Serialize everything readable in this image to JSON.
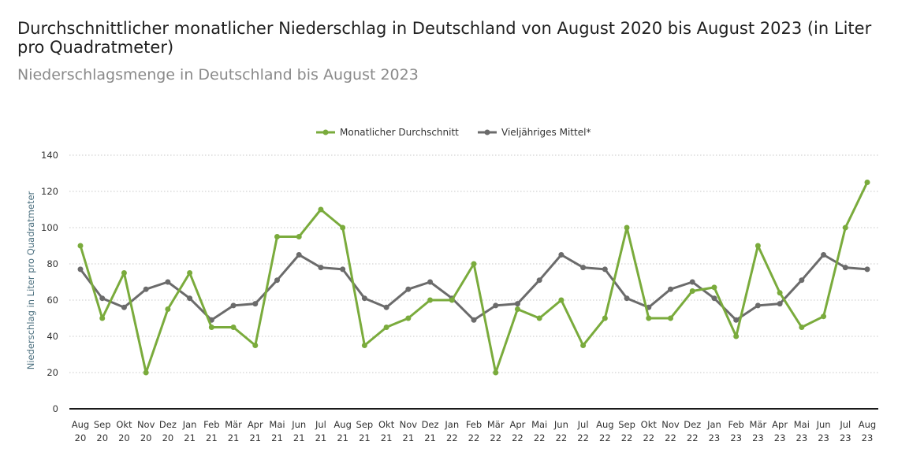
{
  "header": {
    "title": "Durchschnittlicher monatlicher Niederschlag in Deutschland von August 2020 bis August 2023 (in Liter pro Quadratmeter)",
    "subtitle": "Niederschlagsmenge in Deutschland bis August 2023"
  },
  "colors": {
    "series_1": "#7aab3c",
    "series_2": "#6b6b6b",
    "grid": "#c8c8c8",
    "axis": "#1a1a1a"
  },
  "chart_data": {
    "type": "line",
    "ylabel": "Niederschlag in Liter pro Quadratmeter",
    "ylim": [
      0,
      140
    ],
    "yticks": [
      0,
      20,
      40,
      60,
      80,
      100,
      120,
      140
    ],
    "grid": "horizontal-dotted",
    "legend_position": "top-center",
    "categories": [
      [
        "Aug",
        "20"
      ],
      [
        "Sep",
        "20"
      ],
      [
        "Okt",
        "20"
      ],
      [
        "Nov",
        "20"
      ],
      [
        "Dez",
        "20"
      ],
      [
        "Jan",
        "21"
      ],
      [
        "Feb",
        "21"
      ],
      [
        "Mär",
        "21"
      ],
      [
        "Apr",
        "21"
      ],
      [
        "Mai",
        "21"
      ],
      [
        "Jun",
        "21"
      ],
      [
        "Jul",
        "21"
      ],
      [
        "Aug",
        "21"
      ],
      [
        "Sep",
        "21"
      ],
      [
        "Okt",
        "21"
      ],
      [
        "Nov",
        "21"
      ],
      [
        "Dez",
        "21"
      ],
      [
        "Jan",
        "22"
      ],
      [
        "Feb",
        "22"
      ],
      [
        "Mär",
        "22"
      ],
      [
        "Apr",
        "22"
      ],
      [
        "Mai",
        "22"
      ],
      [
        "Jun",
        "22"
      ],
      [
        "Jul",
        "22"
      ],
      [
        "Aug",
        "22"
      ],
      [
        "Sep",
        "22"
      ],
      [
        "Okt",
        "22"
      ],
      [
        "Nov",
        "22"
      ],
      [
        "Dez",
        "22"
      ],
      [
        "Jan",
        "23"
      ],
      [
        "Feb",
        "23"
      ],
      [
        "Mär",
        "23"
      ],
      [
        "Apr",
        "23"
      ],
      [
        "Mai",
        "23"
      ],
      [
        "Jun",
        "23"
      ],
      [
        "Jul",
        "23"
      ],
      [
        "Aug",
        "23"
      ]
    ],
    "series": [
      {
        "name": "Monatlicher Durchschnitt",
        "values": [
          90,
          50,
          75,
          20,
          55,
          75,
          45,
          45,
          35,
          95,
          95,
          110,
          100,
          35,
          45,
          50,
          60,
          60,
          80,
          20,
          55,
          50,
          60,
          35,
          50,
          100,
          50,
          50,
          65,
          67,
          40,
          90,
          64,
          45,
          51,
          100,
          125
        ]
      },
      {
        "name": "Vieljähriges Mittel*",
        "values": [
          77,
          61,
          56,
          66,
          70,
          61,
          49,
          57,
          58,
          71,
          85,
          78,
          77,
          61,
          56,
          66,
          70,
          61,
          49,
          57,
          58,
          71,
          85,
          78,
          77,
          61,
          56,
          66,
          70,
          61,
          49,
          57,
          58,
          71,
          85,
          78,
          77
        ]
      }
    ]
  }
}
